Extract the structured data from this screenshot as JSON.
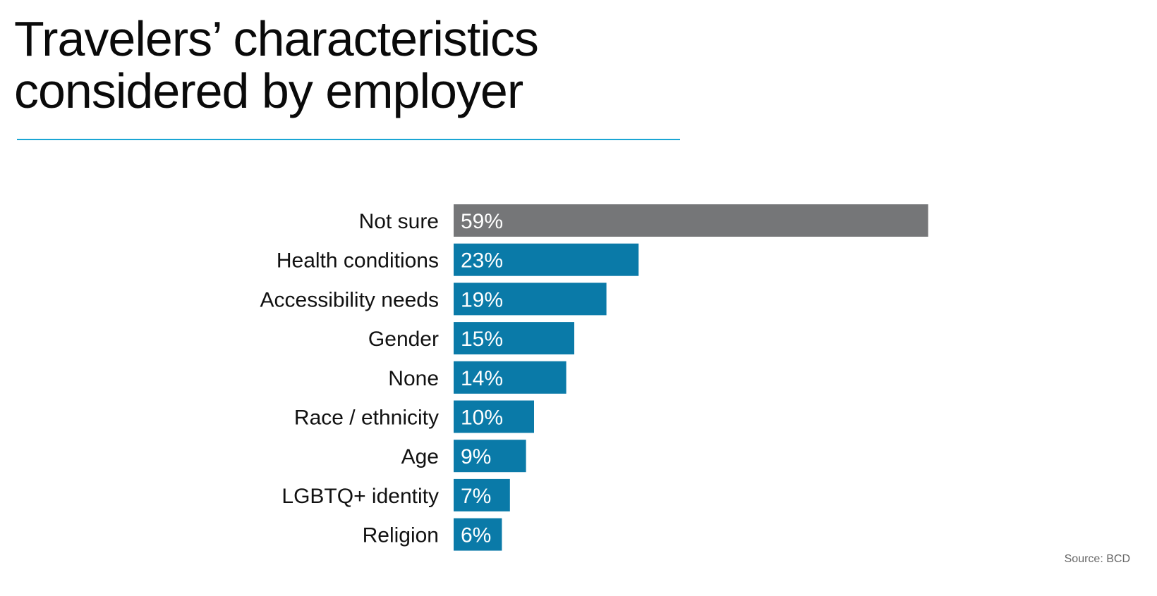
{
  "header": {
    "title_line1": "Travelers’ characteristics",
    "title_line2": "considered by employer",
    "rule_color": "#1aa6d4"
  },
  "footer": {
    "source": "Source: BCD"
  },
  "colors": {
    "primary_bar": "#0a7aa8",
    "highlight_bar": "#757678",
    "label_text": "#111111",
    "value_text": "#ffffff"
  },
  "chart_data": {
    "type": "bar",
    "orientation": "horizontal",
    "title": "Travelers’ characteristics considered by employer",
    "xlabel": "",
    "ylabel": "",
    "xlim": [
      0,
      100
    ],
    "grid": false,
    "legend": "none",
    "categories": [
      "Not sure",
      "Health conditions",
      "Accessibility needs",
      "Gender",
      "None",
      "Race / ethnicity",
      "Age",
      "LGBTQ+ identity",
      "Religion"
    ],
    "values": [
      59,
      23,
      19,
      15,
      14,
      10,
      9,
      7,
      6
    ],
    "value_labels": [
      "59%",
      "23%",
      "19%",
      "15%",
      "14%",
      "10%",
      "9%",
      "7%",
      "6%"
    ],
    "highlight_category": "Not sure"
  }
}
